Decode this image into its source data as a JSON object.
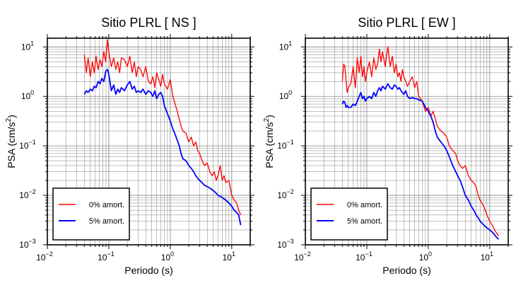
{
  "chart_data": [
    {
      "type": "line",
      "title": "Sitio PLRL [ NS ]",
      "xlabel": "Periodo (s)",
      "ylabel_main": "PSA (cm/s",
      "ylabel_sup": "2",
      "ylabel_close": ")",
      "xscale": "log",
      "yscale": "log",
      "xlim": [
        0.01,
        20
      ],
      "ylim": [
        0.001,
        15
      ],
      "grid": true,
      "legend_position": "bottom-left",
      "x_ticks": [
        {
          "base": "10",
          "exp": "−2"
        },
        {
          "base": "10",
          "exp": "−1"
        },
        {
          "base": "10",
          "exp": "0"
        },
        {
          "base": "10",
          "exp": "1"
        }
      ],
      "y_ticks": [
        {
          "base": "10",
          "exp": "−3"
        },
        {
          "base": "10",
          "exp": "−2"
        },
        {
          "base": "10",
          "exp": "−1"
        },
        {
          "base": "10",
          "exp": "0"
        },
        {
          "base": "10",
          "exp": "1"
        }
      ],
      "series": [
        {
          "name": "0% amort.",
          "color": "#ff0000",
          "x": [
            0.04,
            0.043,
            0.046,
            0.05,
            0.054,
            0.058,
            0.062,
            0.067,
            0.072,
            0.077,
            0.083,
            0.089,
            0.095,
            0.1,
            0.11,
            0.12,
            0.13,
            0.14,
            0.15,
            0.16,
            0.18,
            0.2,
            0.22,
            0.24,
            0.26,
            0.28,
            0.3,
            0.33,
            0.36,
            0.4,
            0.44,
            0.48,
            0.52,
            0.56,
            0.6,
            0.65,
            0.7,
            0.75,
            0.8,
            0.9,
            1.0,
            1.1,
            1.2,
            1.3,
            1.4,
            1.5,
            1.6,
            1.8,
            2.0,
            2.2,
            2.4,
            2.6,
            2.8,
            3.0,
            3.3,
            3.6,
            4.0,
            4.4,
            4.8,
            5.2,
            5.6,
            6.0,
            6.5,
            7.0,
            7.5,
            8.0,
            9.0,
            10.0,
            11.0,
            12.0,
            13.0,
            14.0
          ],
          "y": [
            7.0,
            3.0,
            6.0,
            2.5,
            5.0,
            3.0,
            6.5,
            3.5,
            5.5,
            4.0,
            8.0,
            5.0,
            14.0,
            8.0,
            4.0,
            6.0,
            3.5,
            5.0,
            3.0,
            6.0,
            5.5,
            4.0,
            6.5,
            3.0,
            5.0,
            2.5,
            4.0,
            3.5,
            2.5,
            4.0,
            2.0,
            1.8,
            2.5,
            1.5,
            3.0,
            2.2,
            1.6,
            2.8,
            1.8,
            1.4,
            2.2,
            1.0,
            0.7,
            0.5,
            0.35,
            0.25,
            0.2,
            0.18,
            0.12,
            0.15,
            0.1,
            0.12,
            0.08,
            0.07,
            0.05,
            0.04,
            0.045,
            0.03,
            0.025,
            0.03,
            0.02,
            0.025,
            0.04,
            0.02,
            0.025,
            0.018,
            0.02,
            0.01,
            0.008,
            0.007,
            0.005,
            0.004
          ]
        },
        {
          "name": "5% amort.",
          "color": "#0000ff",
          "x": [
            0.04,
            0.043,
            0.046,
            0.05,
            0.054,
            0.058,
            0.062,
            0.067,
            0.072,
            0.077,
            0.083,
            0.089,
            0.095,
            0.1,
            0.11,
            0.12,
            0.13,
            0.14,
            0.15,
            0.16,
            0.18,
            0.2,
            0.22,
            0.24,
            0.26,
            0.28,
            0.3,
            0.33,
            0.36,
            0.4,
            0.44,
            0.48,
            0.52,
            0.56,
            0.6,
            0.65,
            0.7,
            0.75,
            0.8,
            0.9,
            1.0,
            1.1,
            1.2,
            1.3,
            1.4,
            1.5,
            1.6,
            1.8,
            2.0,
            2.2,
            2.4,
            2.6,
            2.8,
            3.0,
            3.3,
            3.6,
            4.0,
            4.4,
            4.8,
            5.2,
            5.6,
            6.0,
            6.5,
            7.0,
            7.5,
            8.0,
            9.0,
            10.0,
            11.0,
            12.0,
            13.0,
            14.0
          ],
          "y": [
            1.1,
            1.3,
            1.2,
            1.4,
            1.3,
            1.6,
            1.5,
            2.0,
            1.8,
            2.3,
            2.0,
            3.2,
            3.5,
            2.8,
            1.3,
            1.7,
            1.1,
            1.4,
            1.2,
            1.5,
            1.3,
            1.7,
            2.0,
            1.4,
            1.6,
            1.2,
            1.3,
            1.2,
            1.4,
            1.1,
            1.3,
            1.2,
            1.0,
            1.3,
            0.9,
            1.1,
            1.2,
            1.0,
            0.65,
            0.45,
            0.32,
            0.22,
            0.17,
            0.13,
            0.1,
            0.07,
            0.055,
            0.05,
            0.04,
            0.035,
            0.03,
            0.025,
            0.022,
            0.02,
            0.018,
            0.016,
            0.015,
            0.014,
            0.013,
            0.012,
            0.011,
            0.01,
            0.0095,
            0.009,
            0.0085,
            0.008,
            0.007,
            0.006,
            0.005,
            0.0045,
            0.004,
            0.0025
          ]
        }
      ]
    },
    {
      "type": "line",
      "title": "Sitio PLRL [ EW ]",
      "xlabel": "Periodo (s)",
      "ylabel_main": "PSA (cm/s",
      "ylabel_sup": "2",
      "ylabel_close": ")",
      "xscale": "log",
      "yscale": "log",
      "xlim": [
        0.01,
        20
      ],
      "ylim": [
        0.001,
        15
      ],
      "grid": true,
      "legend_position": "bottom-left",
      "x_ticks": [
        {
          "base": "10",
          "exp": "−2"
        },
        {
          "base": "10",
          "exp": "−1"
        },
        {
          "base": "10",
          "exp": "0"
        },
        {
          "base": "10",
          "exp": "1"
        }
      ],
      "y_ticks": [
        {
          "base": "10",
          "exp": "−3"
        },
        {
          "base": "10",
          "exp": "−2"
        },
        {
          "base": "10",
          "exp": "−1"
        },
        {
          "base": "10",
          "exp": "0"
        },
        {
          "base": "10",
          "exp": "1"
        }
      ],
      "series": [
        {
          "name": "0% amort.",
          "color": "#ff0000",
          "x": [
            0.04,
            0.042,
            0.044,
            0.046,
            0.048,
            0.05,
            0.055,
            0.06,
            0.065,
            0.07,
            0.075,
            0.08,
            0.085,
            0.09,
            0.095,
            0.1,
            0.11,
            0.12,
            0.13,
            0.14,
            0.15,
            0.16,
            0.17,
            0.18,
            0.19,
            0.2,
            0.21,
            0.22,
            0.24,
            0.26,
            0.28,
            0.3,
            0.32,
            0.34,
            0.36,
            0.38,
            0.4,
            0.43,
            0.46,
            0.5,
            0.55,
            0.6,
            0.65,
            0.7,
            0.8,
            0.9,
            1.0,
            1.1,
            1.2,
            1.3,
            1.4,
            1.6,
            1.8,
            2.0,
            2.2,
            2.5,
            2.8,
            3.0,
            3.3,
            3.6,
            4.0,
            4.5,
            5.0,
            5.5,
            6.0,
            6.5,
            7.0,
            8.0,
            9.0,
            10.0,
            11.0,
            12.0,
            13.0,
            14.0
          ],
          "y": [
            2.0,
            4.5,
            4.0,
            2.0,
            1.2,
            1.5,
            1.8,
            4.0,
            1.5,
            6.0,
            3.0,
            6.5,
            2.5,
            4.0,
            2.0,
            3.0,
            5.0,
            2.5,
            6.0,
            3.5,
            4.5,
            9.0,
            5.0,
            8.0,
            5.5,
            4.0,
            7.0,
            10.0,
            4.0,
            6.5,
            3.0,
            4.5,
            2.5,
            3.0,
            2.0,
            3.5,
            2.5,
            2.0,
            1.6,
            2.0,
            2.5,
            1.5,
            2.0,
            1.0,
            0.8,
            0.5,
            0.6,
            0.4,
            0.5,
            0.35,
            0.25,
            0.2,
            0.18,
            0.15,
            0.1,
            0.08,
            0.07,
            0.05,
            0.04,
            0.035,
            0.04,
            0.025,
            0.02,
            0.018,
            0.015,
            0.01,
            0.008,
            0.006,
            0.004,
            0.003,
            0.0025,
            0.002,
            0.0017,
            0.0015
          ]
        },
        {
          "name": "5% amort.",
          "color": "#0000ff",
          "x": [
            0.04,
            0.042,
            0.044,
            0.046,
            0.048,
            0.05,
            0.055,
            0.06,
            0.065,
            0.07,
            0.075,
            0.08,
            0.085,
            0.09,
            0.095,
            0.1,
            0.11,
            0.12,
            0.13,
            0.14,
            0.15,
            0.16,
            0.17,
            0.18,
            0.19,
            0.2,
            0.21,
            0.22,
            0.24,
            0.26,
            0.28,
            0.3,
            0.32,
            0.34,
            0.36,
            0.38,
            0.4,
            0.43,
            0.46,
            0.5,
            0.55,
            0.6,
            0.65,
            0.7,
            0.8,
            0.9,
            1.0,
            1.1,
            1.2,
            1.3,
            1.4,
            1.6,
            1.8,
            2.0,
            2.2,
            2.5,
            2.8,
            3.0,
            3.3,
            3.6,
            4.0,
            4.5,
            5.0,
            5.5,
            6.0,
            6.5,
            7.0,
            8.0,
            9.0,
            10.0,
            11.0,
            12.0,
            13.0,
            14.0
          ],
          "y": [
            0.7,
            0.8,
            0.75,
            0.6,
            0.65,
            0.6,
            0.6,
            0.7,
            0.65,
            0.8,
            1.0,
            1.2,
            0.9,
            1.0,
            0.8,
            0.9,
            1.0,
            0.9,
            1.2,
            1.0,
            1.3,
            1.5,
            1.3,
            1.6,
            1.5,
            1.4,
            1.6,
            1.8,
            1.5,
            1.4,
            1.7,
            1.6,
            1.4,
            1.5,
            1.3,
            1.2,
            1.1,
            1.3,
            1.0,
            0.9,
            0.95,
            0.9,
            0.9,
            0.85,
            0.8,
            0.6,
            0.5,
            0.4,
            0.3,
            0.2,
            0.15,
            0.12,
            0.1,
            0.08,
            0.06,
            0.04,
            0.03,
            0.025,
            0.02,
            0.015,
            0.01,
            0.008,
            0.006,
            0.005,
            0.004,
            0.0035,
            0.003,
            0.0025,
            0.0022,
            0.002,
            0.0018,
            0.0016,
            0.0014,
            0.0013
          ]
        }
      ]
    }
  ]
}
